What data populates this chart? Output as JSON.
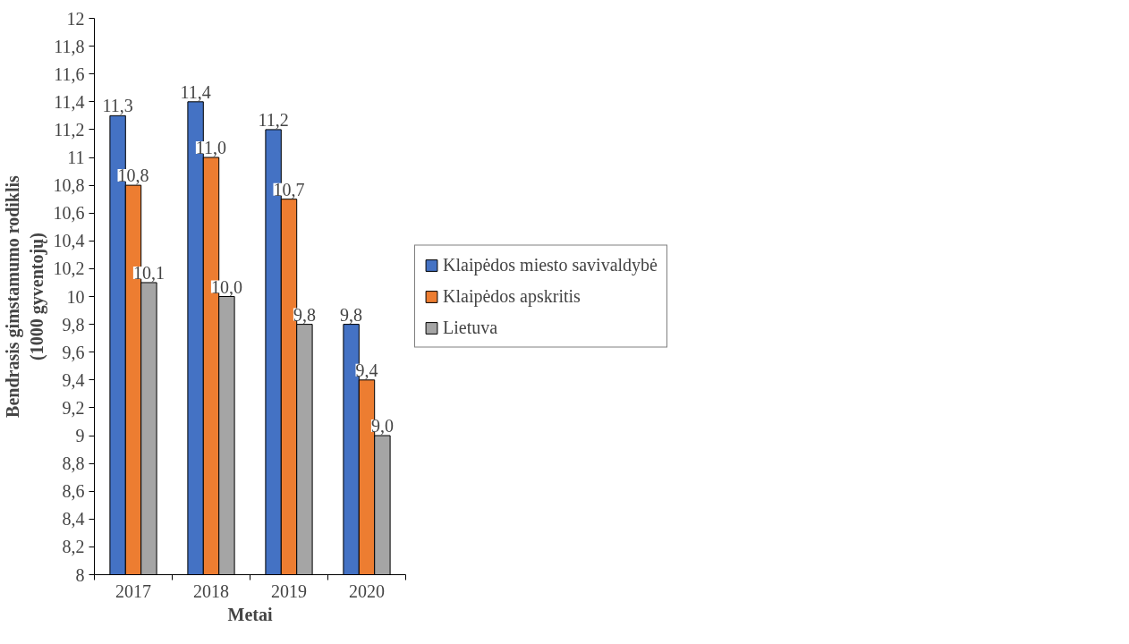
{
  "chart_data": {
    "type": "bar",
    "xlabel": "Metai",
    "ylabel": "Bendrasis gimstamumo rodiklis\n(1000 gyventojų)",
    "categories": [
      "2017",
      "2018",
      "2019",
      "2020"
    ],
    "series": [
      {
        "name": "Klaipėdos miesto savivaldybė",
        "color": "#4472c4",
        "values": [
          11.3,
          11.4,
          11.2,
          9.8
        ],
        "value_labels": [
          "11,3",
          "11,4",
          "11,2",
          "9,8"
        ]
      },
      {
        "name": "Klaipėdos apskritis",
        "color": "#ed7d31",
        "values": [
          10.8,
          11.0,
          10.7,
          9.4
        ],
        "value_labels": [
          "10,8",
          "11,0",
          "10,7",
          "9,4"
        ]
      },
      {
        "name": "Lietuva",
        "color": "#a5a5a5",
        "values": [
          10.1,
          10.0,
          9.8,
          9.0
        ],
        "value_labels": [
          "10,1",
          "10,0",
          "9,8",
          "9,0"
        ]
      }
    ],
    "ylim": [
      8,
      12
    ],
    "yticks": [
      8,
      {
        "value": 8.2,
        "label": "8,2"
      },
      {
        "value": 8.4,
        "label": "8,4"
      },
      {
        "value": 8.6,
        "label": "8,6"
      },
      {
        "value": 8.8,
        "label": "8,8"
      },
      9,
      {
        "value": 9.2,
        "label": "9,2"
      },
      {
        "value": 9.4,
        "label": "9,4"
      },
      {
        "value": 9.6,
        "label": "9,6"
      },
      {
        "value": 9.8,
        "label": "9,8"
      },
      10,
      {
        "value": 10.2,
        "label": "10,2"
      },
      {
        "value": 10.4,
        "label": "10,4"
      },
      {
        "value": 10.6,
        "label": "10,6"
      },
      {
        "value": 10.8,
        "label": "10,8"
      },
      11,
      {
        "value": 11.2,
        "label": "11,2"
      },
      {
        "value": 11.4,
        "label": "11,4"
      },
      {
        "value": 11.6,
        "label": "11,6"
      },
      {
        "value": 11.8,
        "label": "11,8"
      },
      12
    ],
    "grid": false,
    "legend": "right"
  }
}
